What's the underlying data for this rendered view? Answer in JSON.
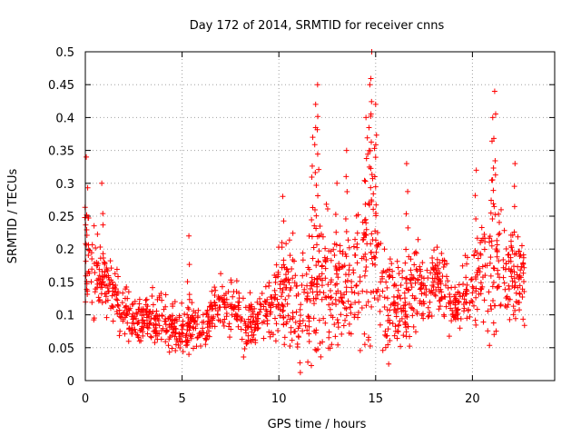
{
  "chart_data": {
    "type": "scatter",
    "title": "Day 172 of 2014, SRMTID for receiver cnns",
    "xlabel": "GPS time / hours",
    "ylabel": "SRMTID / TECUs",
    "xlim": [
      0,
      24.25
    ],
    "ylim": [
      0,
      0.5
    ],
    "x_ticks": [
      0,
      5,
      10,
      15,
      20
    ],
    "x_tick_labels": [
      "0",
      "5",
      "10",
      "15",
      "20"
    ],
    "y_ticks": [
      0,
      0.05,
      0.1,
      0.15,
      0.2,
      0.25,
      0.3,
      0.35,
      0.4,
      0.45,
      0.5
    ],
    "y_tick_labels": [
      "0",
      "0.05",
      "0.1",
      "0.15",
      "0.2",
      "0.25",
      "0.3",
      "0.35",
      "0.4",
      "0.45",
      "0.5"
    ],
    "grid": true,
    "marker": "+",
    "color": "#ff0000",
    "x_range": [
      0.0,
      22.7
    ],
    "envelope": {
      "hours": [
        0.0,
        0.3,
        0.6,
        1.0,
        1.5,
        2.0,
        2.5,
        3.0,
        3.5,
        4.0,
        4.5,
        5.0,
        5.5,
        6.0,
        6.5,
        7.0,
        7.5,
        8.0,
        8.5,
        9.0,
        9.5,
        10.0,
        10.5,
        11.0,
        11.5,
        12.0,
        12.5,
        13.0,
        13.5,
        14.0,
        14.5,
        14.8,
        15.0,
        15.3,
        15.6,
        16.0,
        16.5,
        17.0,
        17.5,
        18.0,
        18.5,
        19.0,
        19.5,
        20.0,
        20.5,
        21.0,
        21.3,
        21.6,
        22.0,
        22.5,
        22.7
      ],
      "center": [
        0.17,
        0.18,
        0.16,
        0.15,
        0.13,
        0.11,
        0.09,
        0.09,
        0.1,
        0.09,
        0.08,
        0.08,
        0.09,
        0.07,
        0.1,
        0.12,
        0.12,
        0.09,
        0.08,
        0.1,
        0.11,
        0.13,
        0.14,
        0.1,
        0.12,
        0.14,
        0.15,
        0.13,
        0.14,
        0.17,
        0.2,
        0.22,
        0.2,
        0.15,
        0.11,
        0.12,
        0.1,
        0.14,
        0.15,
        0.16,
        0.14,
        0.11,
        0.13,
        0.15,
        0.16,
        0.19,
        0.18,
        0.16,
        0.16,
        0.15,
        0.14
      ],
      "spread": [
        0.08,
        0.08,
        0.06,
        0.06,
        0.05,
        0.05,
        0.04,
        0.04,
        0.04,
        0.04,
        0.04,
        0.05,
        0.04,
        0.03,
        0.04,
        0.04,
        0.05,
        0.05,
        0.05,
        0.05,
        0.05,
        0.07,
        0.09,
        0.1,
        0.1,
        0.11,
        0.12,
        0.1,
        0.1,
        0.12,
        0.15,
        0.17,
        0.14,
        0.1,
        0.09,
        0.09,
        0.09,
        0.08,
        0.07,
        0.07,
        0.06,
        0.05,
        0.06,
        0.07,
        0.09,
        0.13,
        0.11,
        0.08,
        0.07,
        0.06,
        0.06
      ]
    },
    "peaks": [
      {
        "x": 0.05,
        "y": 0.34
      },
      {
        "x": 0.85,
        "y": 0.3
      },
      {
        "x": 5.35,
        "y": 0.22
      },
      {
        "x": 10.2,
        "y": 0.28
      },
      {
        "x": 11.75,
        "y": 0.37
      },
      {
        "x": 11.9,
        "y": 0.42
      },
      {
        "x": 12.0,
        "y": 0.45
      },
      {
        "x": 13.0,
        "y": 0.3
      },
      {
        "x": 13.5,
        "y": 0.35
      },
      {
        "x": 14.5,
        "y": 0.4
      },
      {
        "x": 14.7,
        "y": 0.45
      },
      {
        "x": 14.8,
        "y": 0.5
      },
      {
        "x": 15.0,
        "y": 0.42
      },
      {
        "x": 16.6,
        "y": 0.33
      },
      {
        "x": 20.2,
        "y": 0.32
      },
      {
        "x": 21.05,
        "y": 0.4
      },
      {
        "x": 21.15,
        "y": 0.44
      },
      {
        "x": 22.2,
        "y": 0.33
      }
    ]
  }
}
